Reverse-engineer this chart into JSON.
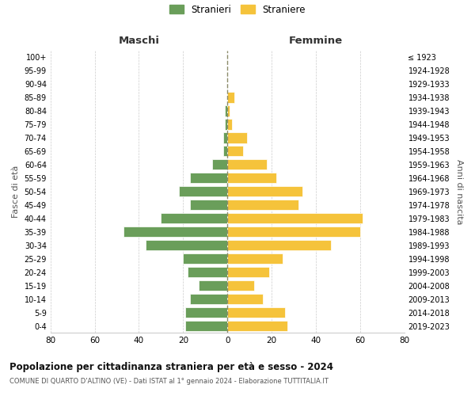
{
  "age_groups": [
    "0-4",
    "5-9",
    "10-14",
    "15-19",
    "20-24",
    "25-29",
    "30-34",
    "35-39",
    "40-44",
    "45-49",
    "50-54",
    "55-59",
    "60-64",
    "65-69",
    "70-74",
    "75-79",
    "80-84",
    "85-89",
    "90-94",
    "95-99",
    "100+"
  ],
  "birth_years": [
    "2019-2023",
    "2014-2018",
    "2009-2013",
    "2004-2008",
    "1999-2003",
    "1994-1998",
    "1989-1993",
    "1984-1988",
    "1979-1983",
    "1974-1978",
    "1969-1973",
    "1964-1968",
    "1959-1963",
    "1954-1958",
    "1949-1953",
    "1944-1948",
    "1939-1943",
    "1934-1938",
    "1929-1933",
    "1924-1928",
    "≤ 1923"
  ],
  "maschi": [
    19,
    19,
    17,
    13,
    18,
    20,
    37,
    47,
    30,
    17,
    22,
    17,
    7,
    2,
    2,
    1,
    1,
    0,
    0,
    0,
    0
  ],
  "femmine": [
    27,
    26,
    16,
    12,
    19,
    25,
    47,
    60,
    61,
    32,
    34,
    22,
    18,
    7,
    9,
    2,
    1,
    3,
    0,
    0,
    0
  ],
  "color_maschi": "#6a9e5a",
  "color_femmine": "#f5c33b",
  "color_center_line": "#8b8b6a",
  "title": "Popolazione per cittadinanza straniera per età e sesso - 2024",
  "subtitle": "COMUNE DI QUARTO D'ALTINO (VE) - Dati ISTAT al 1° gennaio 2024 - Elaborazione TUTTITALIA.IT",
  "xlabel_left": "Maschi",
  "xlabel_right": "Femmine",
  "ylabel_left": "Fasce di età",
  "ylabel_right": "Anni di nascita",
  "legend_maschi": "Stranieri",
  "legend_femmine": "Straniere",
  "xlim": 80,
  "background_color": "#ffffff",
  "grid_color": "#cccccc"
}
